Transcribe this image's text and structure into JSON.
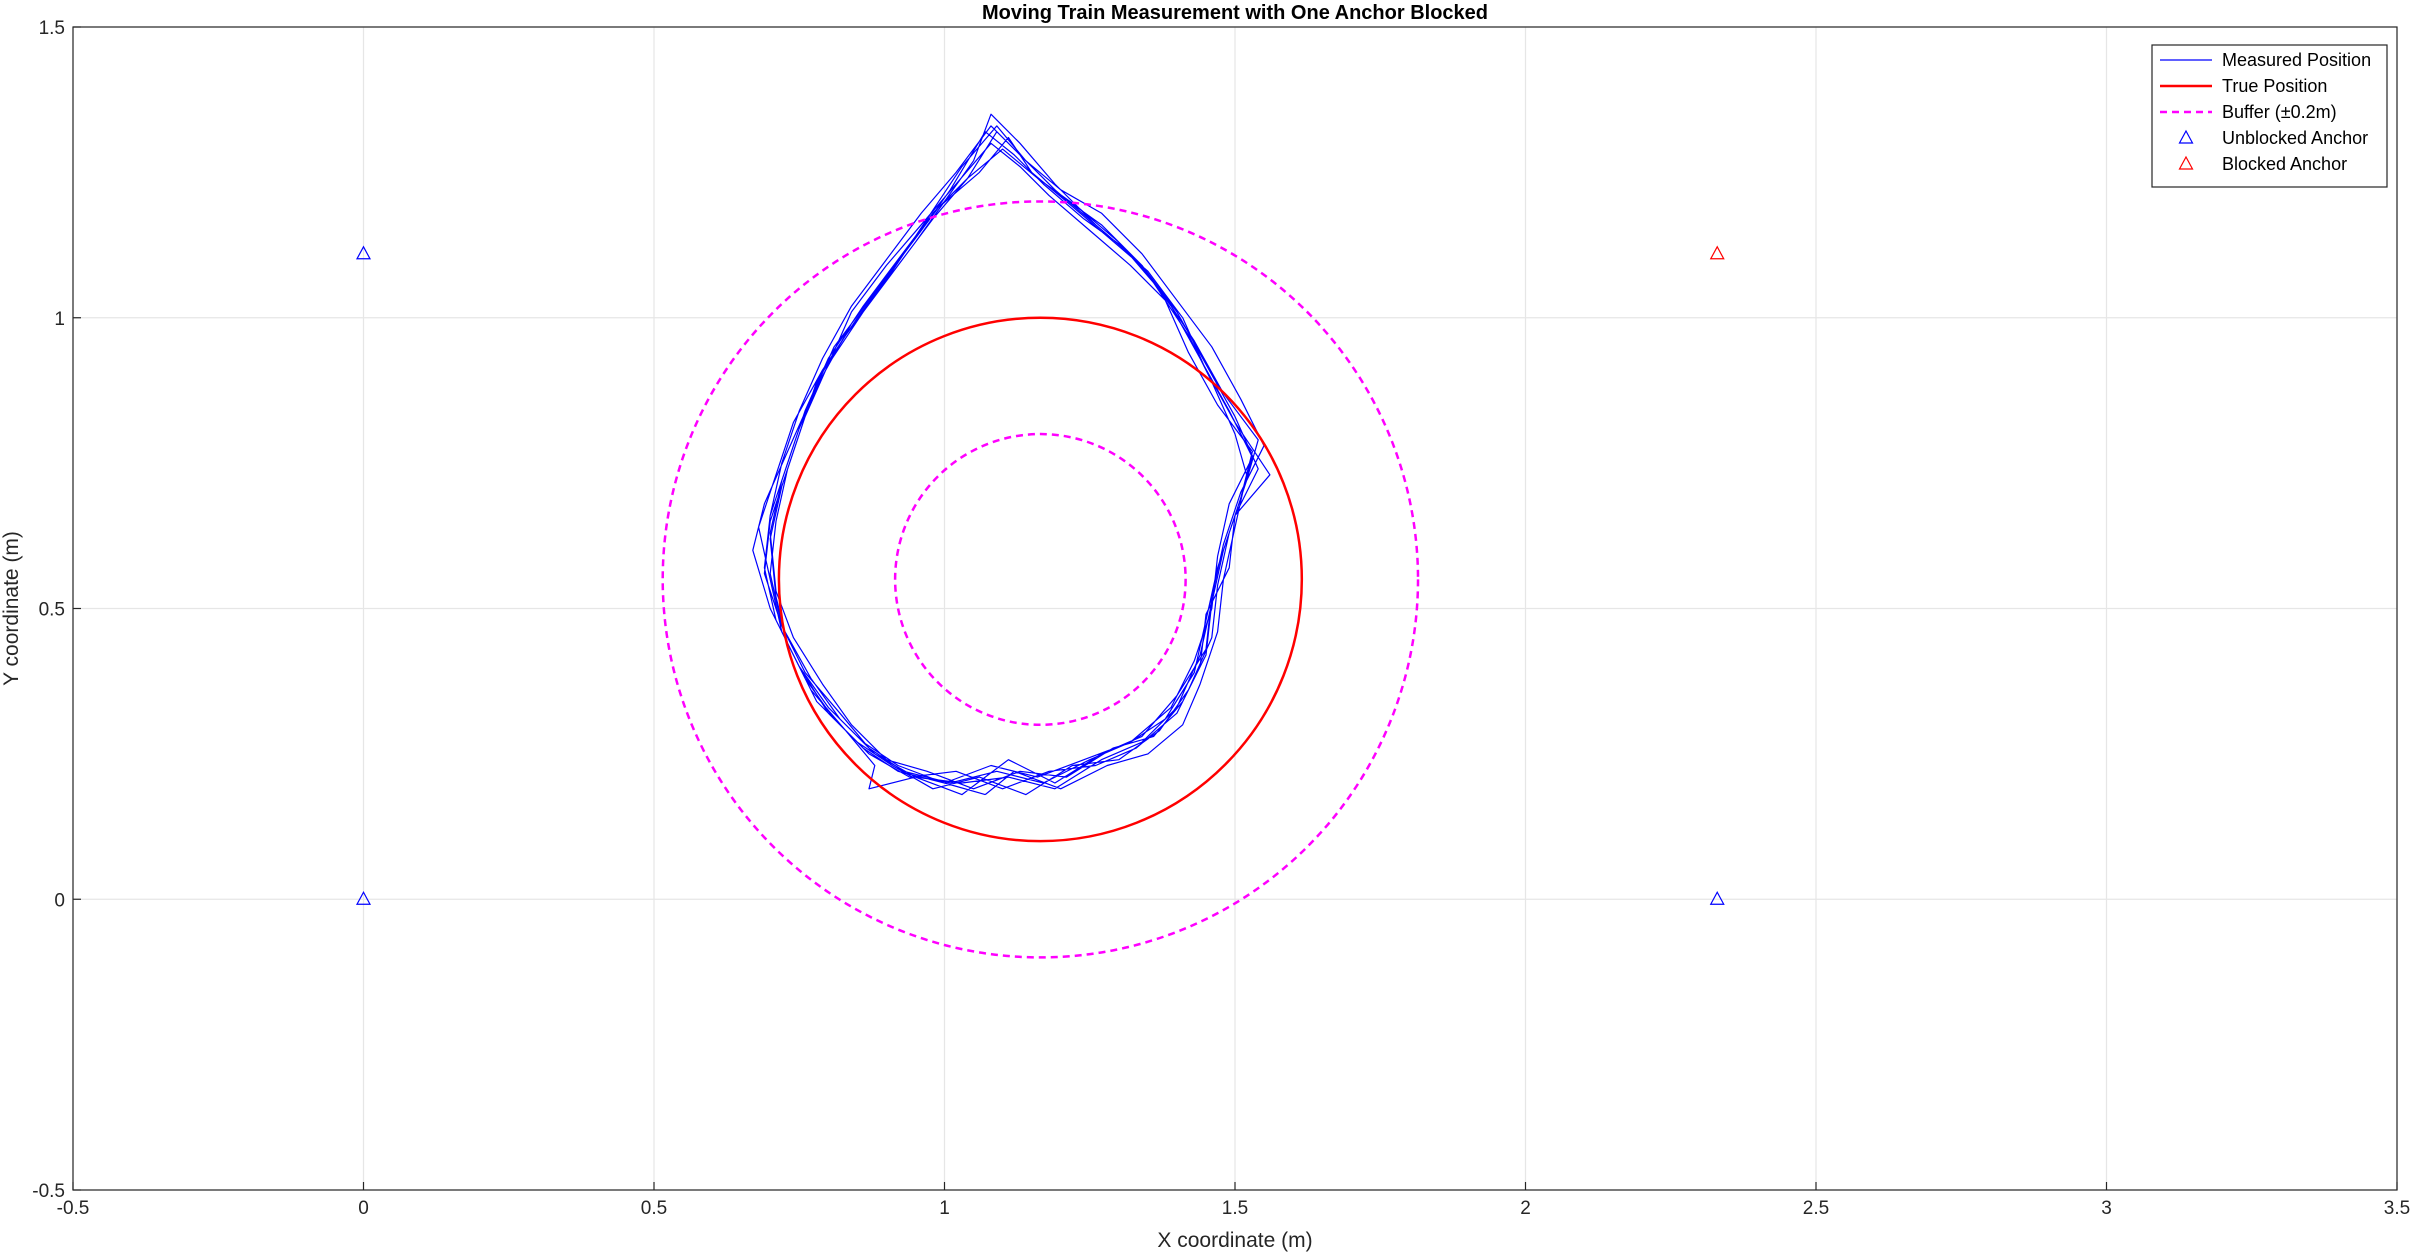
{
  "chart_data": {
    "type": "line",
    "title": "Moving Train Measurement with One Anchor Blocked",
    "xlabel": "X coordinate (m)",
    "ylabel": "Y coordinate (m)",
    "xlim": [
      -0.5,
      3.5
    ],
    "ylim": [
      -0.5,
      1.5
    ],
    "xticks": [
      -0.5,
      0,
      0.5,
      1,
      1.5,
      2,
      2.5,
      3,
      3.5
    ],
    "xtick_labels": [
      "-0.5",
      "0",
      "0.5",
      "1",
      "1.5",
      "2",
      "2.5",
      "3",
      "3.5"
    ],
    "yticks": [
      -0.5,
      0,
      0.5,
      1,
      1.5
    ],
    "ytick_labels": [
      "-0.5",
      "0",
      "0.5",
      "1",
      "1.5"
    ],
    "grid": true,
    "legend_position": "top-right",
    "series": [
      {
        "name": "Measured Position",
        "style": "solid",
        "color": "#0000ff",
        "points": [
          [
            1.07,
            0.18
          ],
          [
            1.12,
            0.22
          ],
          [
            1.2,
            0.19
          ],
          [
            1.28,
            0.23
          ],
          [
            1.35,
            0.25
          ],
          [
            1.41,
            0.3
          ],
          [
            1.44,
            0.37
          ],
          [
            1.47,
            0.46
          ],
          [
            1.48,
            0.55
          ],
          [
            1.5,
            0.64
          ],
          [
            1.52,
            0.73
          ],
          [
            1.5,
            0.8
          ],
          [
            1.46,
            0.89
          ],
          [
            1.42,
            0.97
          ],
          [
            1.36,
            1.06
          ],
          [
            1.3,
            1.13
          ],
          [
            1.23,
            1.19
          ],
          [
            1.16,
            1.24
          ],
          [
            1.1,
            1.29
          ],
          [
            1.04,
            1.24
          ],
          [
            0.98,
            1.18
          ],
          [
            0.92,
            1.1
          ],
          [
            0.86,
            1.02
          ],
          [
            0.8,
            0.93
          ],
          [
            0.76,
            0.84
          ],
          [
            0.73,
            0.75
          ],
          [
            0.7,
            0.66
          ],
          [
            0.69,
            0.57
          ],
          [
            0.71,
            0.48
          ],
          [
            0.75,
            0.4
          ],
          [
            0.8,
            0.32
          ],
          [
            0.86,
            0.26
          ],
          [
            0.92,
            0.22
          ],
          [
            1.0,
            0.2
          ],
          [
            1.08,
            0.23
          ],
          [
            1.16,
            0.21
          ],
          [
            1.24,
            0.24
          ],
          [
            1.32,
            0.27
          ],
          [
            1.39,
            0.33
          ],
          [
            1.43,
            0.41
          ],
          [
            1.46,
            0.5
          ],
          [
            1.47,
            0.59
          ],
          [
            1.49,
            0.68
          ],
          [
            1.53,
            0.76
          ],
          [
            1.49,
            0.84
          ],
          [
            1.44,
            0.93
          ],
          [
            1.39,
            1.02
          ],
          [
            1.33,
            1.1
          ],
          [
            1.26,
            1.16
          ],
          [
            1.19,
            1.23
          ],
          [
            1.13,
            1.3
          ],
          [
            1.08,
            1.35
          ],
          [
            1.05,
            1.27
          ],
          [
            1.0,
            1.2
          ],
          [
            0.95,
            1.13
          ],
          [
            0.89,
            1.05
          ],
          [
            0.83,
            0.97
          ],
          [
            0.78,
            0.89
          ],
          [
            0.75,
            0.8
          ],
          [
            0.72,
            0.71
          ],
          [
            0.7,
            0.62
          ],
          [
            0.71,
            0.52
          ],
          [
            0.73,
            0.44
          ],
          [
            0.77,
            0.36
          ],
          [
            0.83,
            0.29
          ],
          [
            0.88,
            0.23
          ],
          [
            0.87,
            0.19
          ],
          [
            0.95,
            0.21
          ],
          [
            1.03,
            0.18
          ],
          [
            1.11,
            0.24
          ],
          [
            1.19,
            0.2
          ],
          [
            1.27,
            0.25
          ],
          [
            1.34,
            0.28
          ],
          [
            1.4,
            0.35
          ],
          [
            1.45,
            0.43
          ],
          [
            1.46,
            0.52
          ],
          [
            1.48,
            0.61
          ],
          [
            1.51,
            0.7
          ],
          [
            1.55,
            0.78
          ],
          [
            1.51,
            0.86
          ],
          [
            1.46,
            0.95
          ],
          [
            1.4,
            1.03
          ],
          [
            1.34,
            1.11
          ],
          [
            1.27,
            1.18
          ],
          [
            1.2,
            1.22
          ],
          [
            1.14,
            1.27
          ],
          [
            1.09,
            1.33
          ],
          [
            1.03,
            1.26
          ],
          [
            0.97,
            1.17
          ],
          [
            0.91,
            1.08
          ],
          [
            0.85,
            1.0
          ],
          [
            0.79,
            0.91
          ],
          [
            0.74,
            0.82
          ],
          [
            0.71,
            0.73
          ],
          [
            0.68,
            0.64
          ],
          [
            0.7,
            0.55
          ],
          [
            0.72,
            0.46
          ],
          [
            0.76,
            0.38
          ],
          [
            0.81,
            0.31
          ],
          [
            0.87,
            0.25
          ],
          [
            0.94,
            0.21
          ],
          [
            1.02,
            0.22
          ],
          [
            1.1,
            0.19
          ],
          [
            1.18,
            0.22
          ],
          [
            1.26,
            0.23
          ],
          [
            1.33,
            0.26
          ],
          [
            1.4,
            0.32
          ],
          [
            1.44,
            0.4
          ],
          [
            1.45,
            0.49
          ],
          [
            1.49,
            0.57
          ],
          [
            1.5,
            0.66
          ],
          [
            1.56,
            0.73
          ],
          [
            1.5,
            0.82
          ],
          [
            1.45,
            0.91
          ],
          [
            1.41,
            1.0
          ],
          [
            1.35,
            1.08
          ],
          [
            1.28,
            1.14
          ],
          [
            1.21,
            1.2
          ],
          [
            1.15,
            1.25
          ],
          [
            1.11,
            1.31
          ],
          [
            1.06,
            1.25
          ],
          [
            0.99,
            1.19
          ],
          [
            0.93,
            1.11
          ],
          [
            0.87,
            1.03
          ],
          [
            0.81,
            0.95
          ],
          [
            0.77,
            0.86
          ],
          [
            0.73,
            0.77
          ],
          [
            0.69,
            0.68
          ],
          [
            0.67,
            0.6
          ],
          [
            0.7,
            0.5
          ],
          [
            0.74,
            0.42
          ],
          [
            0.78,
            0.34
          ],
          [
            0.85,
            0.27
          ],
          [
            0.91,
            0.23
          ],
          [
            0.98,
            0.19
          ],
          [
            1.06,
            0.21
          ],
          [
            1.14,
            0.18
          ],
          [
            1.22,
            0.23
          ],
          [
            1.3,
            0.24
          ],
          [
            1.37,
            0.29
          ],
          [
            1.42,
            0.36
          ],
          [
            1.46,
            0.45
          ],
          [
            1.47,
            0.54
          ],
          [
            1.49,
            0.63
          ],
          [
            1.52,
            0.72
          ],
          [
            1.54,
            0.79
          ],
          [
            1.48,
            0.87
          ],
          [
            1.43,
            0.96
          ],
          [
            1.37,
            1.05
          ],
          [
            1.31,
            1.12
          ],
          [
            1.24,
            1.17
          ],
          [
            1.17,
            1.23
          ],
          [
            1.12,
            1.28
          ],
          [
            1.07,
            1.32
          ],
          [
            1.01,
            1.22
          ],
          [
            0.96,
            1.15
          ],
          [
            0.9,
            1.07
          ],
          [
            0.84,
            0.99
          ],
          [
            0.79,
            0.9
          ],
          [
            0.75,
            0.81
          ],
          [
            0.72,
            0.72
          ],
          [
            0.7,
            0.63
          ],
          [
            0.71,
            0.53
          ],
          [
            0.74,
            0.45
          ],
          [
            0.79,
            0.37
          ],
          [
            0.84,
            0.3
          ],
          [
            0.9,
            0.24
          ],
          [
            0.97,
            0.22
          ],
          [
            1.05,
            0.19
          ],
          [
            1.13,
            0.22
          ],
          [
            1.21,
            0.21
          ],
          [
            1.29,
            0.26
          ],
          [
            1.36,
            0.28
          ],
          [
            1.41,
            0.34
          ],
          [
            1.45,
            0.42
          ],
          [
            1.46,
            0.51
          ],
          [
            1.48,
            0.6
          ],
          [
            1.51,
            0.69
          ],
          [
            1.53,
            0.77
          ],
          [
            1.47,
            0.85
          ],
          [
            1.42,
            0.94
          ],
          [
            1.38,
            1.03
          ],
          [
            1.32,
            1.09
          ],
          [
            1.25,
            1.15
          ],
          [
            1.18,
            1.21
          ],
          [
            1.13,
            1.26
          ],
          [
            1.08,
            1.3
          ],
          [
            1.02,
            1.23
          ],
          [
            0.96,
            1.16
          ],
          [
            0.9,
            1.09
          ],
          [
            0.84,
            1.01
          ],
          [
            0.8,
            0.92
          ],
          [
            0.76,
            0.83
          ],
          [
            0.73,
            0.74
          ],
          [
            0.7,
            0.65
          ],
          [
            0.69,
            0.56
          ],
          [
            0.72,
            0.47
          ],
          [
            0.76,
            0.39
          ],
          [
            0.82,
            0.32
          ],
          [
            0.87,
            0.26
          ],
          [
            0.93,
            0.22
          ],
          [
            1.01,
            0.2
          ],
          [
            1.09,
            0.22
          ],
          [
            1.17,
            0.2
          ],
          [
            1.25,
            0.24
          ],
          [
            1.32,
            0.27
          ],
          [
            1.38,
            0.31
          ],
          [
            1.43,
            0.39
          ],
          [
            1.45,
            0.48
          ],
          [
            1.47,
            0.57
          ],
          [
            1.5,
            0.66
          ],
          [
            1.54,
            0.74
          ],
          [
            1.5,
            0.83
          ],
          [
            1.45,
            0.92
          ],
          [
            1.4,
            1.01
          ],
          [
            1.34,
            1.09
          ],
          [
            1.27,
            1.16
          ],
          [
            1.2,
            1.21
          ],
          [
            1.14,
            1.27
          ],
          [
            1.09,
            1.32
          ],
          [
            1.04,
            1.24
          ],
          [
            0.98,
            1.17
          ],
          [
            0.92,
            1.09
          ],
          [
            0.86,
            1.01
          ],
          [
            0.8,
            0.92
          ],
          [
            0.76,
            0.83
          ],
          [
            0.73,
            0.74
          ],
          [
            0.71,
            0.65
          ],
          [
            0.7,
            0.56
          ],
          [
            0.72,
            0.47
          ],
          [
            0.77,
            0.38
          ],
          [
            0.82,
            0.31
          ],
          [
            0.88,
            0.25
          ],
          [
            0.95,
            0.21
          ],
          [
            1.03,
            0.2
          ],
          [
            1.11,
            0.21
          ],
          [
            1.19,
            0.19
          ],
          [
            1.27,
            0.24
          ],
          [
            1.34,
            0.27
          ],
          [
            1.4,
            0.33
          ],
          [
            1.44,
            0.42
          ],
          [
            1.46,
            0.51
          ],
          [
            1.48,
            0.6
          ],
          [
            1.51,
            0.69
          ],
          [
            1.53,
            0.76
          ],
          [
            1.49,
            0.84
          ],
          [
            1.44,
            0.93
          ],
          [
            1.39,
            1.02
          ],
          [
            1.33,
            1.1
          ],
          [
            1.26,
            1.16
          ],
          [
            1.19,
            1.22
          ],
          [
            1.13,
            1.28
          ],
          [
            1.08,
            1.33
          ],
          [
            1.02,
            1.25
          ],
          [
            0.96,
            1.18
          ],
          [
            0.9,
            1.1
          ],
          [
            0.84,
            1.02
          ],
          [
            0.79,
            0.93
          ],
          [
            0.75,
            0.84
          ],
          [
            0.72,
            0.75
          ],
          [
            0.7,
            0.66
          ],
          [
            0.69,
            0.57
          ],
          [
            0.71,
            0.48
          ],
          [
            0.75,
            0.4
          ],
          [
            0.8,
            0.33
          ],
          [
            0.86,
            0.27
          ],
          [
            0.92,
            0.23
          ],
          [
            1.0,
            0.2
          ],
          [
            1.07,
            0.18
          ]
        ]
      },
      {
        "name": "True Position",
        "style": "solid",
        "color": "#ff0000",
        "shape": "circle",
        "center": [
          1.165,
          0.55
        ],
        "radius": 0.45
      },
      {
        "name": "Buffer (±0.2m)",
        "style": "dashed",
        "color": "#ff00ff",
        "shape": "circles",
        "center": [
          1.165,
          0.55
        ],
        "radii": [
          0.65,
          0.25
        ]
      },
      {
        "name": "Unblocked Anchor",
        "style": "marker-triangle",
        "color": "#0000ff",
        "points": [
          [
            0,
            0
          ],
          [
            0,
            1.11
          ],
          [
            2.33,
            0
          ]
        ]
      },
      {
        "name": "Blocked Anchor",
        "style": "marker-triangle",
        "color": "#ff0000",
        "points": [
          [
            2.33,
            1.11
          ]
        ]
      }
    ]
  }
}
